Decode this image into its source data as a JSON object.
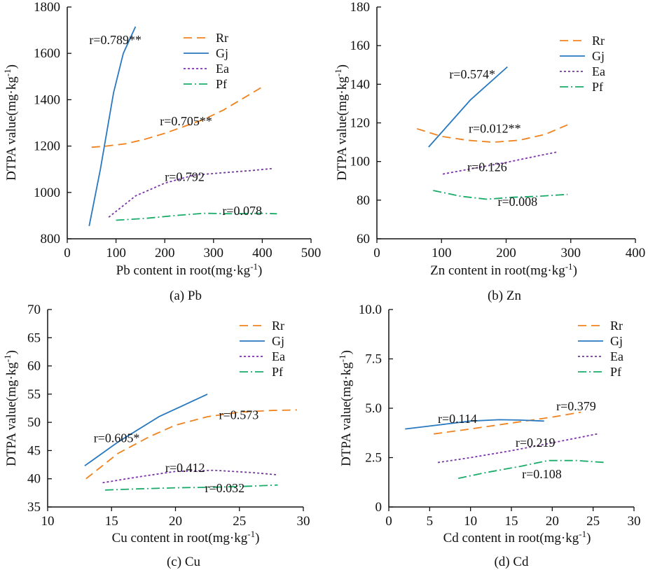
{
  "series_styles": {
    "Rr": {
      "color": "#f0821e",
      "dash": "12,7"
    },
    "Gj": {
      "color": "#2878c0",
      "dash": ""
    },
    "Ea": {
      "color": "#7a33a8",
      "dash": "3,3"
    },
    "Pf": {
      "color": "#1aab6a",
      "dash": "12,4,2,4"
    }
  },
  "chart_data": [
    {
      "id": "pb",
      "type": "line",
      "caption": "(a) Pb",
      "xlabel_main": "Pb content in root(mg·kg",
      "xlabel_sup": "-1",
      "xlabel_end": ")",
      "ylabel_main": "DTPA value(mg·kg",
      "ylabel_sup": "-1",
      "ylabel_end": ")",
      "xlim": [
        0,
        500
      ],
      "ylim": [
        800,
        1800
      ],
      "xticks": [
        0,
        100,
        200,
        300,
        400,
        500
      ],
      "yticks": [
        800,
        1000,
        1200,
        1400,
        1600,
        1800
      ],
      "ytick_labels": [
        "800",
        "1000",
        "1200",
        "1400",
        "1600",
        "1800"
      ],
      "legend": [
        "Rr",
        "Gj",
        "Ea",
        "Pf"
      ],
      "series": [
        {
          "name": "Rr",
          "x": [
            50,
            80,
            120,
            160,
            200,
            240,
            280,
            320,
            360,
            400
          ],
          "y": [
            1195,
            1200,
            1210,
            1230,
            1255,
            1285,
            1315,
            1355,
            1405,
            1455
          ]
        },
        {
          "name": "Gj",
          "x": [
            45,
            68,
            95,
            115,
            140
          ],
          "y": [
            855,
            1100,
            1430,
            1600,
            1715
          ]
        },
        {
          "name": "Ea",
          "x": [
            85,
            140,
            200,
            260,
            320,
            380,
            420
          ],
          "y": [
            893,
            985,
            1040,
            1075,
            1085,
            1095,
            1103
          ]
        },
        {
          "name": "Pf",
          "x": [
            100,
            160,
            220,
            280,
            340,
            400,
            430
          ],
          "y": [
            880,
            888,
            900,
            910,
            908,
            910,
            908
          ]
        }
      ],
      "annotations": [
        {
          "text": "r=0.789**",
          "x": 45,
          "y": 1640
        },
        {
          "text": "r=0.705**",
          "x": 190,
          "y": 1290
        },
        {
          "text": "r=0.792",
          "x": 200,
          "y": 1050
        },
        {
          "text": "r=0.078",
          "x": 318,
          "y": 903
        }
      ]
    },
    {
      "id": "zn",
      "type": "line",
      "caption": "(b) Zn",
      "xlabel_main": "Zn content in root(mg·kg",
      "xlabel_sup": "-1",
      "xlabel_end": ")",
      "ylabel_main": "DTPA value(mg·kg",
      "ylabel_sup": "-1",
      "ylabel_end": ")",
      "xlim": [
        0,
        400
      ],
      "ylim": [
        60,
        180
      ],
      "xticks": [
        0,
        100,
        200,
        300,
        400
      ],
      "yticks": [
        60,
        80,
        100,
        120,
        140,
        160,
        180
      ],
      "ytick_labels": [
        "60",
        "80",
        "100",
        "120",
        "140",
        "160",
        "180"
      ],
      "legend": [
        "Rr",
        "Gj",
        "Ea",
        "Pf"
      ],
      "series": [
        {
          "name": "Rr",
          "x": [
            62,
            100,
            140,
            180,
            220,
            260,
            295
          ],
          "y": [
            117,
            113,
            111,
            110,
            111,
            114,
            119
          ]
        },
        {
          "name": "Gj",
          "x": [
            80,
            145,
            202
          ],
          "y": [
            107.5,
            132,
            149
          ]
        },
        {
          "name": "Ea",
          "x": [
            102,
            150,
            200,
            250,
            280
          ],
          "y": [
            93.5,
            96.5,
            99.5,
            103,
            105
          ]
        },
        {
          "name": "Pf",
          "x": [
            87,
            130,
            170,
            210,
            250,
            295
          ],
          "y": [
            85,
            82,
            80.5,
            81.5,
            82,
            83
          ]
        }
      ],
      "annotations": [
        {
          "text": "r=0.574*",
          "x": 112,
          "y": 143
        },
        {
          "text": "r=0.012**",
          "x": 142,
          "y": 115
        },
        {
          "text": "r=0.126",
          "x": 140,
          "y": 95
        },
        {
          "text": "r=0.008",
          "x": 187,
          "y": 77
        }
      ]
    },
    {
      "id": "cu",
      "type": "line",
      "caption": "(c) Cu",
      "xlabel_main": "Cu content in root(mg·kg",
      "xlabel_sup": "-1",
      "xlabel_end": ")",
      "ylabel_main": "DTPA value(mg·kg",
      "ylabel_sup": "-1",
      "ylabel_end": ")",
      "xlim": [
        10,
        30
      ],
      "ylim": [
        35,
        70
      ],
      "xticks": [
        10,
        15,
        20,
        25,
        30
      ],
      "yticks": [
        35,
        40,
        45,
        50,
        55,
        60,
        65,
        70
      ],
      "ytick_labels": [
        "35",
        "40",
        "45",
        "50",
        "55",
        "60",
        "65",
        "70"
      ],
      "legend": [
        "Rr",
        "Gj",
        "Ea",
        "Pf"
      ],
      "series": [
        {
          "name": "Rr",
          "x": [
            13,
            15.5,
            18,
            20,
            22.5,
            25,
            27.5,
            29.5
          ],
          "y": [
            40,
            44.5,
            47.5,
            49.5,
            51,
            51.8,
            52.1,
            52.2
          ]
        },
        {
          "name": "Gj",
          "x": [
            12.9,
            15.5,
            18.7,
            22.5
          ],
          "y": [
            42.3,
            46.5,
            51,
            55
          ]
        },
        {
          "name": "Ea",
          "x": [
            14.3,
            17,
            20,
            23,
            26,
            28
          ],
          "y": [
            39.3,
            40.3,
            41.3,
            41.5,
            41.1,
            40.7
          ]
        },
        {
          "name": "Pf",
          "x": [
            14.5,
            17,
            20,
            23,
            26,
            28
          ],
          "y": [
            38,
            38.2,
            38.4,
            38.5,
            38.7,
            38.9
          ]
        }
      ],
      "annotations": [
        {
          "text": "r=0.605*",
          "x": 13.6,
          "y": 46.5
        },
        {
          "text": "r=0.573",
          "x": 23.4,
          "y": 50.6
        },
        {
          "text": "r=0.412",
          "x": 19.2,
          "y": 41.2
        },
        {
          "text": "r=0.032",
          "x": 22.3,
          "y": 37.6
        }
      ]
    },
    {
      "id": "cd",
      "type": "line",
      "caption": "(d) Cd",
      "xlabel_main": "Cd content in root(mg·kg",
      "xlabel_sup": "-1",
      "xlabel_end": ")",
      "ylabel_main": "DTPA value(mg·kg",
      "ylabel_sup": "-1",
      "ylabel_end": ")",
      "xlim": [
        0,
        30
      ],
      "ylim": [
        0,
        10
      ],
      "xticks": [
        0,
        5,
        10,
        15,
        20,
        25,
        30
      ],
      "yticks": [
        0,
        2.5,
        5,
        7.5,
        10
      ],
      "ytick_labels": [
        "0",
        "2.5",
        "5.0",
        "7.5",
        "10.0"
      ],
      "legend": [
        "Rr",
        "Gj",
        "Ea",
        "Pf"
      ],
      "series": [
        {
          "name": "Rr",
          "x": [
            5.5,
            10,
            15,
            20,
            23.5
          ],
          "y": [
            3.7,
            3.95,
            4.25,
            4.55,
            4.8
          ]
        },
        {
          "name": "Gj",
          "x": [
            2,
            6,
            10,
            13.5,
            16,
            19
          ],
          "y": [
            3.95,
            4.15,
            4.35,
            4.42,
            4.4,
            4.35
          ]
        },
        {
          "name": "Ea",
          "x": [
            6,
            10,
            15,
            20,
            25.5
          ],
          "y": [
            2.25,
            2.5,
            2.85,
            3.25,
            3.7
          ]
        },
        {
          "name": "Pf",
          "x": [
            8.5,
            12,
            16,
            19.5,
            23,
            26.5
          ],
          "y": [
            1.45,
            1.75,
            2.05,
            2.35,
            2.35,
            2.25
          ]
        }
      ],
      "annotations": [
        {
          "text": "r=0.114",
          "x": 6,
          "y": 4.25
        },
        {
          "text": "r=0.379",
          "x": 20.5,
          "y": 4.9
        },
        {
          "text": "r=0.219",
          "x": 15.5,
          "y": 3.05
        },
        {
          "text": "r=0.108",
          "x": 16.3,
          "y": 1.45
        }
      ]
    }
  ]
}
